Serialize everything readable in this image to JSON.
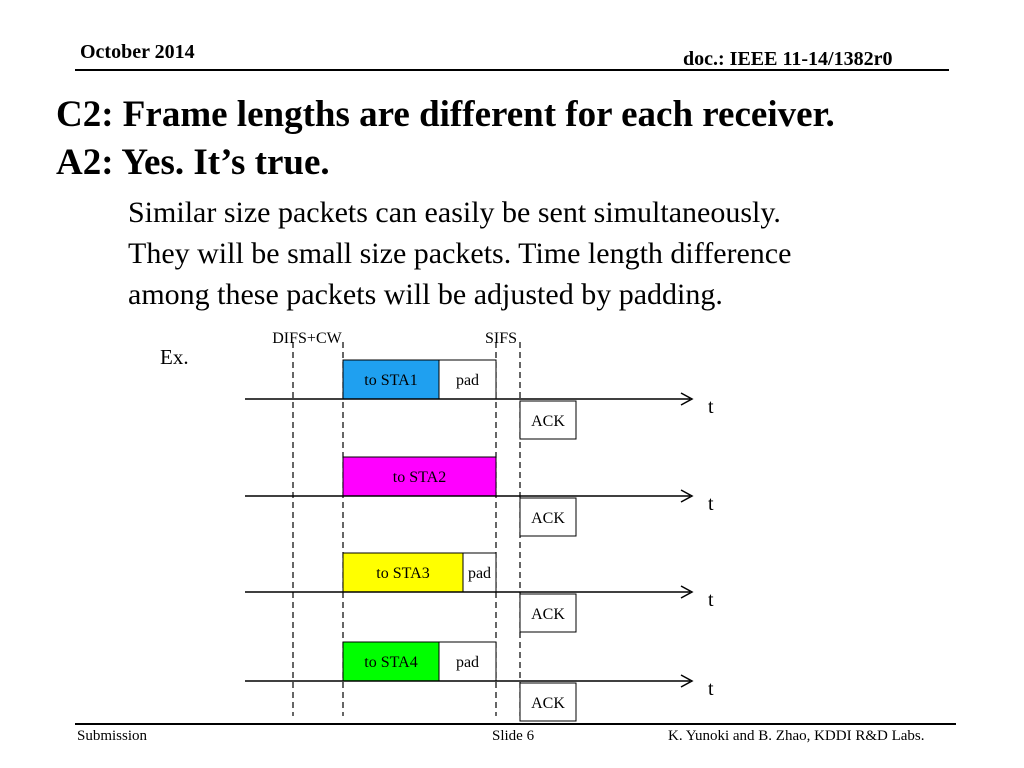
{
  "header": {
    "date": "October 2014",
    "doc_id": "doc.: IEEE 11-14/1382r0"
  },
  "title": {
    "line1": "C2: Frame lengths are different for each receiver.",
    "line2": "A2: Yes.  It’s true."
  },
  "body": {
    "line1": "Similar size packets can easily be sent simultaneously.",
    "line2": "They will be small size packets.  Time length difference",
    "line3": "among these packets will be adjusted by padding."
  },
  "diagram": {
    "example_label": "Ex.",
    "difs_label": "DIFS+CW",
    "sifs_label": "SIFS",
    "time_label": "t",
    "ack_label": "ACK",
    "rows": [
      {
        "frame_label": "to STA1",
        "frame_color": "#1fa0f0",
        "pad_label": "pad"
      },
      {
        "frame_label": "to STA2",
        "frame_color": "#ff00ff",
        "pad_label": ""
      },
      {
        "frame_label": "to STA3",
        "frame_color": "#ffff00",
        "pad_label": "pad"
      },
      {
        "frame_label": "to STA4",
        "frame_color": "#00ff00",
        "pad_label": "pad"
      }
    ]
  },
  "footer": {
    "left": "Submission",
    "center": "Slide 6",
    "right": "K. Yunoki and B. Zhao, KDDI R&D Labs."
  }
}
